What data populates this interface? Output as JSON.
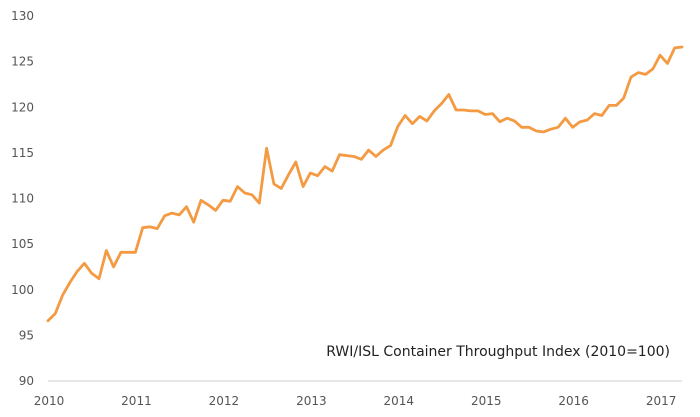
{
  "chart_data": {
    "type": "line",
    "title": "",
    "xlabel": "",
    "ylabel": "",
    "ylim": [
      90,
      130
    ],
    "xlim": [
      "2010-01",
      "2017-04"
    ],
    "y_ticks": [
      90,
      95,
      100,
      105,
      110,
      115,
      120,
      125,
      130
    ],
    "x_ticks": [
      "2010",
      "2011",
      "2012",
      "2013",
      "2014",
      "2015",
      "2016",
      "2017"
    ],
    "grid": false,
    "annotation": "RWI/ISL  Container Throughput Index (2010=100)",
    "color": "#f39a42",
    "series": [
      {
        "x": [
          "2010-01",
          "2010-02",
          "2010-03",
          "2010-04",
          "2010-05",
          "2010-06",
          "2010-07",
          "2010-08",
          "2010-09",
          "2010-10",
          "2010-11",
          "2010-12",
          "2011-01",
          "2011-02",
          "2011-03",
          "2011-04",
          "2011-05",
          "2011-06",
          "2011-07",
          "2011-08",
          "2011-09",
          "2011-10",
          "2011-11",
          "2011-12",
          "2012-01",
          "2012-02",
          "2012-03",
          "2012-04",
          "2012-05",
          "2012-06",
          "2012-07",
          "2012-08",
          "2012-09",
          "2012-10",
          "2012-11",
          "2012-12",
          "2013-01",
          "2013-02",
          "2013-03",
          "2013-04",
          "2013-05",
          "2013-06",
          "2013-07",
          "2013-08",
          "2013-09",
          "2013-10",
          "2013-11",
          "2013-12",
          "2014-01",
          "2014-02",
          "2014-03",
          "2014-04",
          "2014-05",
          "2014-06",
          "2014-07",
          "2014-08",
          "2014-09",
          "2014-10",
          "2014-11",
          "2014-12",
          "2015-01",
          "2015-02",
          "2015-03",
          "2015-04",
          "2015-05",
          "2015-06",
          "2015-07",
          "2015-08",
          "2015-09",
          "2015-10",
          "2015-11",
          "2015-12",
          "2016-01",
          "2016-02",
          "2016-03",
          "2016-04",
          "2016-05",
          "2016-06",
          "2016-07",
          "2016-08",
          "2016-09",
          "2016-10",
          "2016-11",
          "2016-12",
          "2017-01",
          "2017-02",
          "2017-03",
          "2017-04"
        ],
        "values": [
          96.6,
          97.4,
          99.4,
          100.8,
          102.0,
          102.9,
          101.8,
          101.2,
          104.3,
          102.5,
          104.1,
          104.1,
          104.1,
          106.8,
          106.9,
          106.7,
          108.1,
          108.4,
          108.2,
          109.1,
          107.4,
          109.8,
          109.3,
          108.7,
          109.8,
          109.7,
          111.3,
          110.6,
          110.4,
          109.5,
          115.5,
          111.6,
          111.1,
          112.6,
          114.0,
          111.3,
          112.8,
          112.5,
          113.5,
          113.0,
          114.8,
          114.7,
          114.6,
          114.3,
          115.3,
          114.6,
          115.3,
          115.8,
          117.9,
          119.1,
          118.2,
          119.0,
          118.5,
          119.6,
          120.4,
          121.4,
          119.7,
          119.7,
          119.6,
          119.6,
          119.2,
          119.3,
          118.4,
          118.8,
          118.5,
          117.8,
          117.8,
          117.4,
          117.3,
          117.6,
          117.8,
          118.8,
          117.8,
          118.4,
          118.6,
          119.3,
          119.1,
          120.2,
          120.2,
          121.0,
          123.3,
          123.8,
          123.6,
          124.2,
          125.7,
          124.8,
          126.5,
          126.6
        ]
      }
    ]
  }
}
